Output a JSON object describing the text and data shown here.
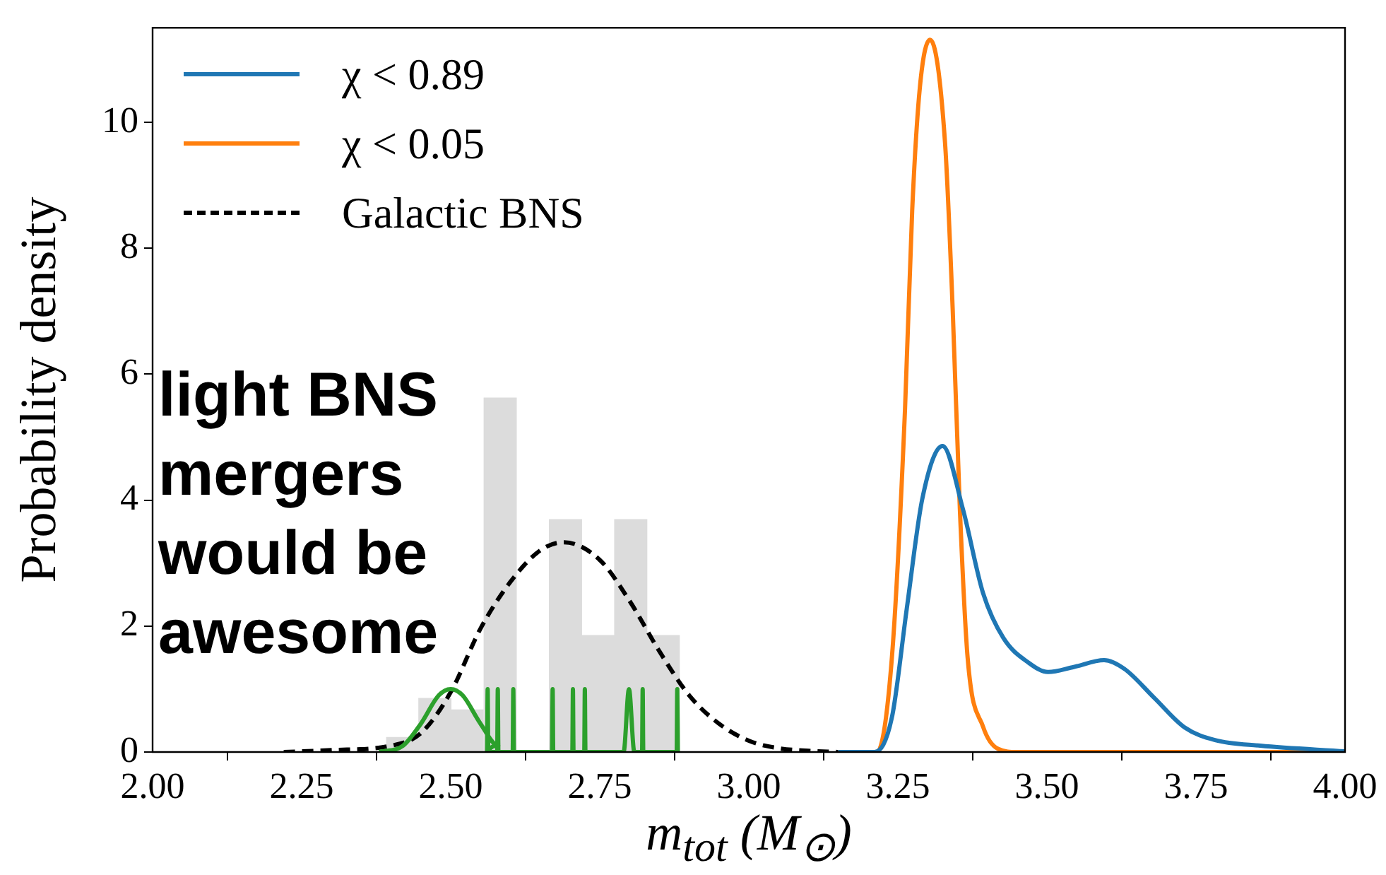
{
  "chart_data": {
    "type": "line",
    "xlabel": "m$_{tot}$ (M$_{⊙}$)",
    "ylabel": "Probability density",
    "xlim": [
      2,
      4
    ],
    "ylim": [
      0,
      11.5
    ],
    "xticks": [
      {
        "value": 2,
        "label": "2.00"
      },
      {
        "value": 2.25,
        "label": "2.25"
      },
      {
        "value": 2.5,
        "label": "2.50"
      },
      {
        "value": 2.75,
        "label": "2.75"
      },
      {
        "value": 3,
        "label": "3.00"
      },
      {
        "value": 3.25,
        "label": "3.25"
      },
      {
        "value": 3.5,
        "label": "3.50"
      },
      {
        "value": 3.75,
        "label": "3.75"
      },
      {
        "value": 4,
        "label": "4.00"
      }
    ],
    "yticks": [
      0,
      2,
      4,
      6,
      8,
      10
    ],
    "grid": false,
    "legend": "top left",
    "marker": "none",
    "annotations": [
      "light BNS mergers would be awesome"
    ],
    "series": [
      {
        "type": "histogram",
        "color": "#dcdcdc",
        "bins": [
          2.392,
          2.447,
          2.5,
          2.555,
          2.611,
          2.665,
          2.72,
          2.775,
          2.829,
          2.884
        ],
        "values": [
          0.23,
          0.85,
          0.67,
          5.62,
          0,
          3.69,
          1.85,
          3.69,
          1.85
        ]
      },
      {
        "color": "#2ca02c",
        "x": [
          2.38,
          2.42,
          2.45,
          2.48,
          2.5,
          2.52,
          2.55,
          2.58,
          2.561,
          2.562,
          2.563,
          2.578,
          2.579,
          2.58,
          2.604,
          2.605,
          2.606,
          2.67,
          2.671,
          2.672,
          2.704,
          2.705,
          2.706,
          2.724,
          2.725,
          2.726,
          2.79,
          2.799,
          2.808,
          2.821,
          2.822,
          2.823,
          2.879,
          2.88,
          2.881
        ],
        "values": [
          0,
          0.1,
          0.45,
          0.9,
          1.0,
          0.9,
          0.45,
          0.1,
          0,
          1,
          0,
          0,
          1,
          0,
          0,
          1,
          0,
          0,
          1,
          0,
          0,
          1,
          0,
          0,
          1,
          0,
          0,
          1,
          0,
          0,
          1,
          0,
          0,
          1,
          0
        ]
      },
      {
        "name": "χ < 0.89",
        "color": "#1f77b4",
        "x": [
          3.15,
          3.211,
          3.24,
          3.265,
          3.291,
          3.325,
          3.359,
          3.393,
          3.427,
          3.469,
          3.502,
          3.545,
          3.596,
          3.63,
          3.68,
          3.731,
          3.782,
          3.858,
          4.0
        ],
        "values": [
          0,
          0,
          0.55,
          2.28,
          4.02,
          4.86,
          3.86,
          2.52,
          1.81,
          1.42,
          1.27,
          1.35,
          1.46,
          1.32,
          0.86,
          0.39,
          0.19,
          0.1,
          0.01
        ]
      },
      {
        "name": "χ < 0.05",
        "color": "#ff7f0e",
        "x": [
          3.15,
          3.215,
          3.24,
          3.262,
          3.274,
          3.287,
          3.304,
          3.329,
          3.342,
          3.354,
          3.367,
          3.393,
          3.418,
          3.45,
          4.0
        ],
        "values": [
          0,
          0,
          1.5,
          5.44,
          8.59,
          10.56,
          11.31,
          9.69,
          7.02,
          3.86,
          1.5,
          0.4,
          0.05,
          0,
          0
        ]
      },
      {
        "name": "Galactic BNS",
        "color": "#000000",
        "line_style": "dashed",
        "x": [
          2.22,
          2.3,
          2.4,
          2.45,
          2.5,
          2.55,
          2.6,
          2.65,
          2.69,
          2.75,
          2.8,
          2.85,
          2.9,
          2.95,
          3.0,
          3.05,
          3.1,
          3.15
        ],
        "values": [
          0,
          0.03,
          0.1,
          0.3,
          0.95,
          1.96,
          2.7,
          3.2,
          3.33,
          3.05,
          2.4,
          1.6,
          0.9,
          0.45,
          0.18,
          0.06,
          0.02,
          0
        ]
      }
    ]
  }
}
